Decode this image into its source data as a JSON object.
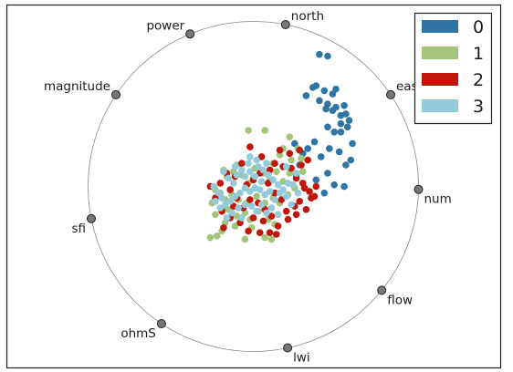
{
  "chart_data": {
    "type": "scatter",
    "plot_kind": "radviz",
    "title": "",
    "xlabel": "",
    "ylabel": "",
    "xlim": [
      -1.05,
      1.05
    ],
    "ylim": [
      -1.05,
      1.05
    ],
    "grid": false,
    "legend_position": "top-right",
    "anchors": [
      {
        "label": "north",
        "angle_deg": 78.75
      },
      {
        "label": "east",
        "angle_deg": 33.75
      },
      {
        "label": "num",
        "angle_deg": -1.0
      },
      {
        "label": "flow",
        "angle_deg": -39.0
      },
      {
        "label": "lwi",
        "angle_deg": -78.0
      },
      {
        "label": "ohmS",
        "angle_deg": -123.75
      },
      {
        "label": "sfi",
        "angle_deg": -168.75
      },
      {
        "label": "magnitude",
        "angle_deg": 146.25
      },
      {
        "label": "power",
        "angle_deg": 112.5
      }
    ],
    "series": [
      {
        "name": "0",
        "color": "#2e75a6",
        "points": [
          [
            0.4,
            0.8
          ],
          [
            0.45,
            0.79
          ],
          [
            0.32,
            0.55
          ],
          [
            0.36,
            0.6
          ],
          [
            0.38,
            0.61
          ],
          [
            0.43,
            0.58
          ],
          [
            0.48,
            0.56
          ],
          [
            0.5,
            0.59
          ],
          [
            0.4,
            0.52
          ],
          [
            0.45,
            0.5
          ],
          [
            0.5,
            0.48
          ],
          [
            0.55,
            0.49
          ],
          [
            0.56,
            0.44
          ],
          [
            0.53,
            0.43
          ],
          [
            0.48,
            0.46
          ],
          [
            0.44,
            0.47
          ],
          [
            0.53,
            0.38
          ],
          [
            0.57,
            0.36
          ],
          [
            0.58,
            0.4
          ],
          [
            0.45,
            0.36
          ],
          [
            0.49,
            0.33
          ],
          [
            0.53,
            0.33
          ],
          [
            0.37,
            0.27
          ],
          [
            0.33,
            0.23
          ],
          [
            0.46,
            0.23
          ],
          [
            0.52,
            0.21
          ],
          [
            0.41,
            0.18
          ],
          [
            0.6,
            0.26
          ],
          [
            0.59,
            0.16
          ],
          [
            0.56,
            0.13
          ],
          [
            0.45,
            0.08
          ],
          [
            0.3,
            0.2
          ],
          [
            0.25,
            0.26
          ],
          [
            0.28,
            0.13
          ],
          [
            0.26,
            0.07
          ],
          [
            0.49,
            0.01
          ],
          [
            0.43,
            -0.04
          ],
          [
            0.55,
            -0.0
          ],
          [
            0.38,
            0.04
          ]
        ]
      },
      {
        "name": "1",
        "color": "#a3c47a",
        "points": [
          [
            -0.03,
            0.34
          ],
          [
            0.07,
            0.34
          ],
          [
            0.22,
            0.3
          ],
          [
            0.18,
            0.23
          ],
          [
            0.27,
            0.23
          ],
          [
            0.29,
            0.17
          ],
          [
            0.23,
            0.16
          ],
          [
            0.16,
            0.19
          ],
          [
            0.12,
            0.14
          ],
          [
            0.05,
            0.18
          ],
          [
            -0.1,
            0.13
          ],
          [
            -0.12,
            0.09
          ],
          [
            -0.18,
            0.1
          ],
          [
            -0.16,
            0.06
          ],
          [
            -0.07,
            0.07
          ],
          [
            -0.03,
            0.02
          ],
          [
            0.0,
            0.05
          ],
          [
            0.06,
            0.08
          ],
          [
            0.1,
            0.04
          ],
          [
            0.14,
            0.09
          ],
          [
            0.18,
            0.03
          ],
          [
            0.22,
            0.08
          ],
          [
            0.25,
            -0.01
          ],
          [
            0.3,
            0.09
          ],
          [
            0.21,
            -0.05
          ],
          [
            0.16,
            -0.1
          ],
          [
            0.12,
            -0.07
          ],
          [
            0.07,
            -0.1
          ],
          [
            0.02,
            -0.06
          ],
          [
            -0.04,
            -0.1
          ],
          [
            -0.09,
            -0.08
          ],
          [
            -0.13,
            -0.05
          ],
          [
            -0.17,
            -0.08
          ],
          [
            -0.2,
            -0.04
          ],
          [
            -0.23,
            -0.02
          ],
          [
            -0.15,
            -0.14
          ],
          [
            -0.1,
            -0.18
          ],
          [
            -0.05,
            -0.16
          ],
          [
            0.03,
            -0.15
          ],
          [
            0.09,
            -0.2
          ],
          [
            -0.17,
            -0.22
          ],
          [
            -0.23,
            -0.17
          ],
          [
            -0.19,
            -0.27
          ],
          [
            -0.22,
            -0.3
          ],
          [
            -0.01,
            -0.25
          ],
          [
            0.07,
            -0.31
          ],
          [
            0.11,
            -0.32
          ],
          [
            -0.05,
            -0.32
          ],
          [
            -0.26,
            -0.31
          ],
          [
            -0.18,
            -0.13
          ],
          [
            -0.25,
            -0.1
          ],
          [
            0.01,
            0.11
          ],
          [
            -0.11,
            -0.24
          ],
          [
            0.13,
            -0.23
          ],
          [
            -0.02,
            -0.2
          ]
        ]
      },
      {
        "name": "2",
        "color": "#c0160b",
        "points": [
          [
            0.16,
            0.22
          ],
          [
            0.22,
            0.2
          ],
          [
            0.28,
            0.22
          ],
          [
            0.29,
            0.13
          ],
          [
            0.33,
            0.16
          ],
          [
            0.23,
            0.11
          ],
          [
            0.18,
            0.12
          ],
          [
            0.13,
            0.14
          ],
          [
            0.1,
            0.1
          ],
          [
            0.26,
            0.05
          ],
          [
            0.3,
            0.02
          ],
          [
            0.34,
            -0.03
          ],
          [
            0.38,
            0.0
          ],
          [
            0.37,
            -0.06
          ],
          [
            0.28,
            -0.09
          ],
          [
            0.25,
            -0.12
          ],
          [
            0.2,
            -0.15
          ],
          [
            0.17,
            -0.08
          ],
          [
            0.13,
            -0.04
          ],
          [
            0.09,
            0.02
          ],
          [
            0.04,
            0.08
          ],
          [
            0.0,
            0.04
          ],
          [
            -0.04,
            0.01
          ],
          [
            -0.02,
            -0.08
          ],
          [
            0.03,
            -0.1
          ],
          [
            0.07,
            -0.14
          ],
          [
            0.11,
            -0.18
          ],
          [
            0.06,
            -0.21
          ],
          [
            0.0,
            -0.19
          ],
          [
            -0.06,
            -0.13
          ],
          [
            -0.1,
            -0.07
          ],
          [
            -0.14,
            -0.02
          ],
          [
            -0.16,
            0.08
          ],
          [
            -0.11,
            0.06
          ],
          [
            -0.07,
            0.14
          ],
          [
            -0.2,
            0.02
          ],
          [
            -0.23,
            -0.07
          ],
          [
            -0.19,
            -0.15
          ],
          [
            -0.14,
            -0.19
          ],
          [
            -0.08,
            -0.22
          ],
          [
            -0.03,
            -0.27
          ],
          [
            0.04,
            -0.28
          ],
          [
            0.1,
            -0.28
          ],
          [
            0.15,
            -0.24
          ],
          [
            0.21,
            -0.2
          ],
          [
            0.26,
            -0.17
          ],
          [
            0.32,
            -0.14
          ],
          [
            0.35,
            -0.07
          ],
          [
            -0.26,
            0.0
          ],
          [
            -0.18,
            -0.25
          ],
          [
            -0.02,
            0.24
          ],
          [
            0.05,
            0.18
          ],
          [
            0.31,
            -0.01
          ],
          [
            0.14,
            -0.29
          ],
          [
            -0.12,
            -0.12
          ]
        ]
      },
      {
        "name": "3",
        "color": "#93cbdb",
        "points": [
          [
            -0.18,
            0.09
          ],
          [
            -0.15,
            0.05
          ],
          [
            -0.12,
            0.02
          ],
          [
            -0.1,
            0.07
          ],
          [
            -0.07,
            0.1
          ],
          [
            -0.05,
            0.06
          ],
          [
            -0.02,
            0.09
          ],
          [
            0.01,
            0.06
          ],
          [
            0.03,
            0.12
          ],
          [
            0.06,
            0.1
          ],
          [
            0.09,
            0.07
          ],
          [
            0.12,
            0.04
          ],
          [
            0.15,
            0.01
          ],
          [
            0.18,
            -0.02
          ],
          [
            0.21,
            0.02
          ],
          [
            0.24,
            0.01
          ],
          [
            0.2,
            -0.06
          ],
          [
            0.16,
            -0.04
          ],
          [
            0.13,
            -0.08
          ],
          [
            0.1,
            -0.03
          ],
          [
            0.07,
            -0.05
          ],
          [
            0.04,
            -0.02
          ],
          [
            0.01,
            -0.01
          ],
          [
            -0.02,
            -0.03
          ],
          [
            -0.05,
            -0.01
          ],
          [
            -0.08,
            -0.04
          ],
          [
            -0.11,
            -0.06
          ],
          [
            -0.14,
            -0.09
          ],
          [
            -0.17,
            -0.11
          ],
          [
            -0.2,
            -0.13
          ],
          [
            -0.23,
            -0.09
          ],
          [
            -0.21,
            -0.04
          ],
          [
            -0.09,
            -0.13
          ],
          [
            -0.05,
            -0.11
          ],
          [
            -0.01,
            -0.12
          ],
          [
            0.02,
            -0.15
          ],
          [
            0.05,
            -0.11
          ],
          [
            0.08,
            -0.16
          ],
          [
            0.11,
            -0.13
          ],
          [
            -0.13,
            -0.16
          ],
          [
            -0.16,
            -0.19
          ],
          [
            -0.07,
            -0.19
          ],
          [
            -0.02,
            0.18
          ],
          [
            0.02,
            0.16
          ],
          [
            0.26,
            0.08
          ],
          [
            0.2,
            0.12
          ],
          [
            0.23,
            -0.11
          ],
          [
            0.15,
            -0.17
          ],
          [
            -0.24,
            0.0
          ],
          [
            0.05,
            0.03
          ],
          [
            -0.03,
            0.14
          ],
          [
            0.08,
            0.14
          ],
          [
            -0.11,
            0.12
          ],
          [
            0.27,
            -0.04
          ],
          [
            -0.19,
            -0.07
          ]
        ]
      }
    ]
  }
}
